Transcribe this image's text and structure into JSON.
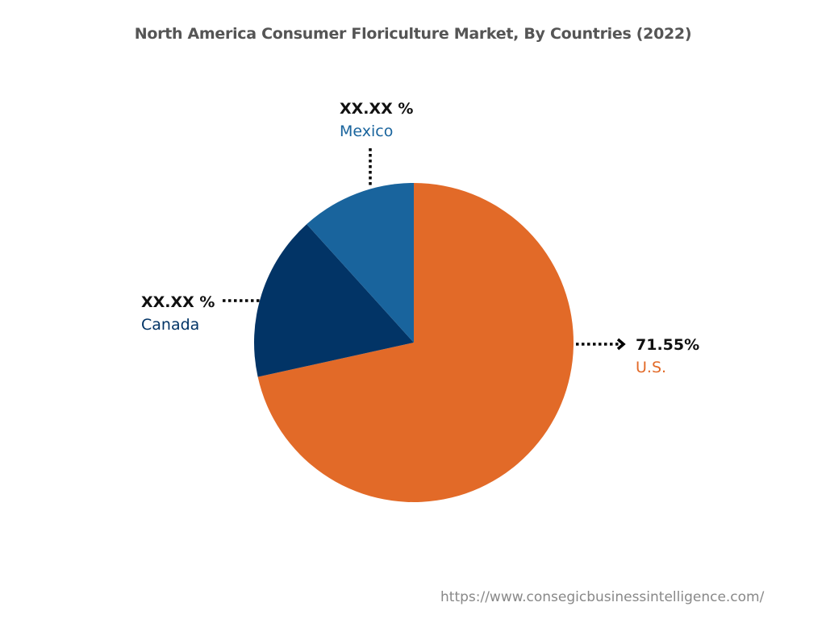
{
  "chart_data": {
    "type": "pie",
    "title": "North America Consumer Floriculture Market, By Countries (2022)",
    "slices": [
      {
        "name": "U.S.",
        "value": 71.55,
        "label": "71.55%",
        "color": "#E26A28"
      },
      {
        "name": "Canada",
        "value": 16.75,
        "label": "XX.XX %",
        "color": "#023466"
      },
      {
        "name": "Mexico",
        "value": 11.7,
        "label": "XX.XX %",
        "color": "#19649D"
      }
    ],
    "start_angle_deg": 0,
    "direction": "clockwise"
  },
  "source": "https://www.consegicbusinessintelligence.com/"
}
